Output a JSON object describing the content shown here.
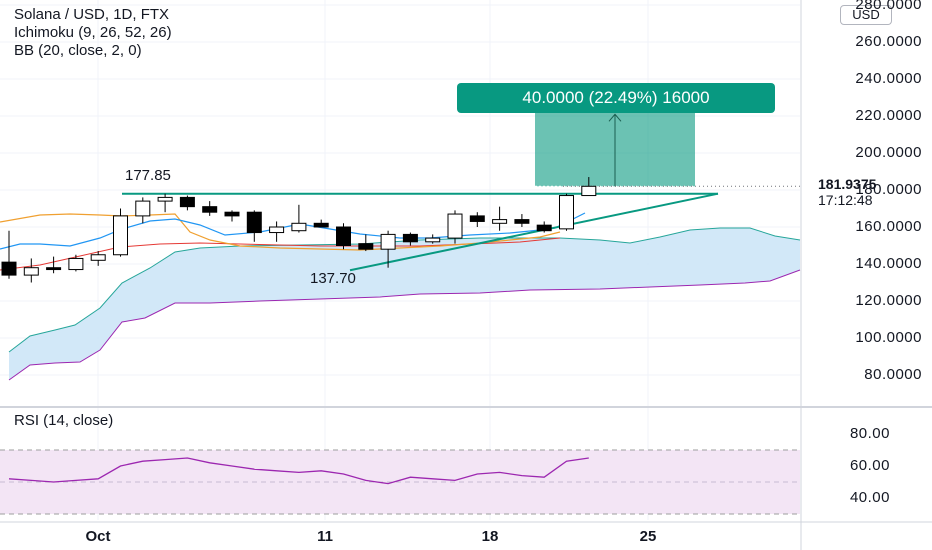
{
  "header": {
    "title": "Solana / USD, 1D, FTX",
    "ichimoku": "Ichimoku (9, 26, 52, 26)",
    "bb": "BB (20, close, 2, 0)",
    "currency": "USD",
    "current_price": "181.9375",
    "countdown": "17:12:48",
    "measure": "40.0000 (22.49%) 16000"
  },
  "rsi": {
    "label": "RSI (14, close)"
  },
  "annotations": {
    "high": "177.85",
    "low": "137.70"
  },
  "colors": {
    "up": "#ffffff",
    "down": "#000000",
    "cloud": "#cde6f7",
    "measure": "#089981",
    "rsi_band": "#f3e5f5",
    "rsi_line": "#9c27b0"
  },
  "chart_data": [
    {
      "type": "candlestick",
      "title": "Solana / USD, 1D, FTX",
      "y_ticks": [
        "80.0000",
        "100.0000",
        "120.0000",
        "140.0000",
        "160.0000",
        "180.0000",
        "200.0000",
        "220.0000",
        "240.0000",
        "260.0000",
        "280.0000"
      ],
      "x_ticks": [
        "Oct",
        "11",
        "18",
        "25"
      ],
      "ylim": [
        60,
        280
      ],
      "candles": [
        {
          "o": 141,
          "h": 158,
          "l": 132,
          "c": 134
        },
        {
          "o": 134,
          "h": 143,
          "l": 130,
          "c": 138
        },
        {
          "o": 138,
          "h": 144,
          "l": 135,
          "c": 137
        },
        {
          "o": 137,
          "h": 145,
          "l": 136,
          "c": 143
        },
        {
          "o": 142,
          "h": 147,
          "l": 139,
          "c": 145
        },
        {
          "o": 145,
          "h": 170,
          "l": 144,
          "c": 166
        },
        {
          "o": 166,
          "h": 176,
          "l": 162,
          "c": 174
        },
        {
          "o": 174,
          "h": 178,
          "l": 168,
          "c": 176
        },
        {
          "o": 176,
          "h": 177,
          "l": 169,
          "c": 171
        },
        {
          "o": 171,
          "h": 174,
          "l": 166,
          "c": 168
        },
        {
          "o": 168,
          "h": 169,
          "l": 163,
          "c": 166
        },
        {
          "o": 168,
          "h": 169,
          "l": 152,
          "c": 157
        },
        {
          "o": 157,
          "h": 163,
          "l": 152,
          "c": 160
        },
        {
          "o": 158,
          "h": 172,
          "l": 157,
          "c": 162
        },
        {
          "o": 162,
          "h": 164,
          "l": 160,
          "c": 160
        },
        {
          "o": 160,
          "h": 162,
          "l": 148,
          "c": 150
        },
        {
          "o": 151,
          "h": 156,
          "l": 147,
          "c": 148
        },
        {
          "o": 148,
          "h": 158,
          "l": 138,
          "c": 156
        },
        {
          "o": 156,
          "h": 157,
          "l": 150,
          "c": 152
        },
        {
          "o": 152,
          "h": 156,
          "l": 151,
          "c": 154
        },
        {
          "o": 154,
          "h": 169,
          "l": 151,
          "c": 167
        },
        {
          "o": 166,
          "h": 168,
          "l": 160,
          "c": 163
        },
        {
          "o": 162,
          "h": 171,
          "l": 158,
          "c": 164
        },
        {
          "o": 164,
          "h": 167,
          "l": 160,
          "c": 162
        },
        {
          "o": 161,
          "h": 163,
          "l": 157,
          "c": 158
        },
        {
          "o": 159,
          "h": 178,
          "l": 158,
          "c": 177
        },
        {
          "o": 177,
          "h": 187,
          "l": 177,
          "c": 182
        }
      ],
      "measure": {
        "from": 182,
        "to": 222
      },
      "resistance": 178,
      "support_from": 137.7,
      "rsi_levels": [
        30,
        50,
        70
      ],
      "rsi_ticks": [
        "40.00",
        "60.00",
        "80.00"
      ],
      "rsi_ylim": [
        20,
        90
      ],
      "rsi": [
        52,
        51,
        50,
        51,
        52,
        60,
        63,
        64,
        65,
        62,
        60,
        58,
        57,
        56,
        57,
        55,
        51,
        49,
        53,
        52,
        51,
        55,
        56,
        54,
        53,
        63,
        65
      ]
    }
  ]
}
